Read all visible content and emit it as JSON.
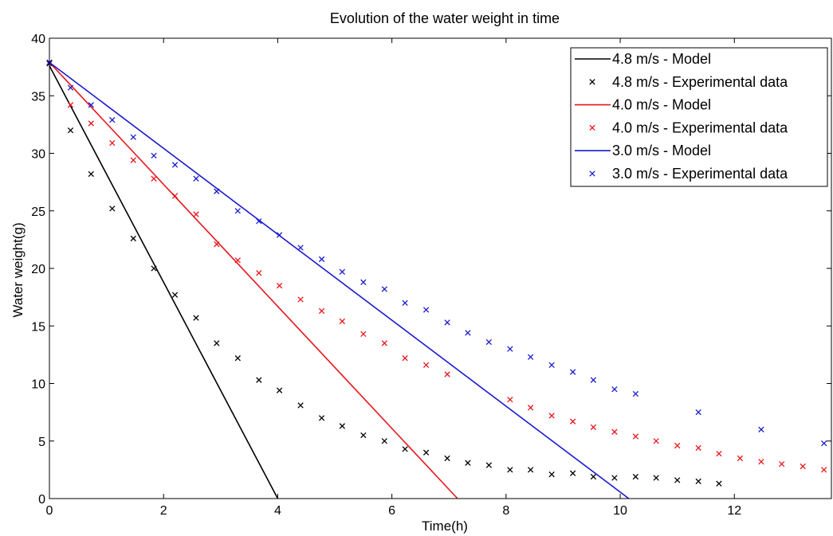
{
  "chart_data": {
    "type": "line",
    "title": "Evolution of the water weight in time",
    "xlabel": "Time(h)",
    "ylabel": "Water weight(g)",
    "xlim": [
      0,
      13.7
    ],
    "ylim": [
      0,
      40
    ],
    "xticks": [
      0,
      2,
      4,
      6,
      8,
      10,
      12
    ],
    "yticks": [
      0,
      5,
      10,
      15,
      20,
      25,
      30,
      35,
      40
    ],
    "grid": false,
    "legend_position": "top-right",
    "series": [
      {
        "name": "4.8 m/s - Model",
        "kind": "line",
        "color": "#000000",
        "x": [
          0,
          4.0
        ],
        "y": [
          37.6,
          0
        ]
      },
      {
        "name": "4.8 m/s - Experimental data",
        "kind": "scatter",
        "color": "#000000",
        "x": [
          0,
          0.37,
          0.73,
          1.1,
          1.47,
          1.83,
          2.2,
          2.57,
          2.93,
          3.3,
          3.67,
          4.03,
          4.4,
          4.77,
          5.13,
          5.5,
          5.87,
          6.23,
          6.6,
          6.97,
          7.33,
          7.7,
          8.07,
          8.43,
          8.8,
          9.17,
          9.53,
          9.9,
          10.27,
          10.63,
          11.0,
          11.37,
          11.73
        ],
        "y": [
          37.8,
          32.0,
          28.2,
          25.2,
          22.6,
          20.0,
          17.7,
          15.7,
          13.5,
          12.2,
          10.3,
          9.4,
          8.1,
          7.0,
          6.3,
          5.5,
          5.0,
          4.3,
          4.0,
          3.5,
          3.1,
          2.9,
          2.5,
          2.5,
          2.1,
          2.2,
          1.9,
          1.8,
          1.9,
          1.8,
          1.6,
          1.5,
          1.3
        ]
      },
      {
        "name": "4.0 m/s - Model",
        "kind": "line",
        "color": "#e8161b",
        "x": [
          0,
          7.15
        ],
        "y": [
          37.9,
          0
        ]
      },
      {
        "name": "4.0 m/s - Experimental data",
        "kind": "scatter",
        "color": "#e8161b",
        "x": [
          0,
          0.37,
          0.73,
          1.1,
          1.47,
          1.83,
          2.2,
          2.57,
          2.93,
          3.3,
          3.67,
          4.03,
          4.4,
          4.77,
          5.13,
          5.5,
          5.87,
          6.23,
          6.6,
          6.97,
          8.07,
          8.43,
          8.8,
          9.17,
          9.53,
          9.9,
          10.27,
          10.63,
          11.0,
          11.37,
          11.73,
          12.1,
          12.47,
          12.83,
          13.2,
          13.57
        ],
        "y": [
          37.9,
          34.2,
          32.6,
          30.9,
          29.4,
          27.8,
          26.3,
          24.7,
          22.1,
          20.7,
          19.6,
          18.5,
          17.3,
          16.3,
          15.4,
          14.3,
          13.5,
          12.2,
          11.6,
          10.8,
          8.6,
          7.9,
          7.2,
          6.7,
          6.2,
          5.8,
          5.4,
          5.0,
          4.6,
          4.4,
          3.9,
          3.5,
          3.2,
          3.0,
          2.8,
          2.5
        ]
      },
      {
        "name": "3.0 m/s - Model",
        "kind": "line",
        "color": "#1a1ad0",
        "x": [
          0,
          10.15
        ],
        "y": [
          37.9,
          0
        ]
      },
      {
        "name": "3.0 m/s - Experimental data",
        "kind": "scatter",
        "color": "#1a1ad0",
        "x": [
          0,
          0.37,
          0.73,
          1.1,
          1.47,
          1.83,
          2.2,
          2.57,
          2.93,
          3.3,
          3.67,
          4.03,
          4.4,
          4.77,
          5.13,
          5.5,
          5.87,
          6.23,
          6.6,
          6.97,
          7.33,
          7.7,
          8.07,
          8.43,
          8.8,
          9.17,
          9.53,
          9.9,
          10.27,
          11.37,
          12.47,
          13.57
        ],
        "y": [
          37.9,
          35.7,
          34.2,
          32.9,
          31.4,
          29.8,
          29.0,
          27.8,
          26.7,
          25.0,
          24.1,
          22.9,
          21.8,
          20.8,
          19.7,
          18.8,
          18.2,
          17.0,
          16.4,
          15.3,
          14.4,
          13.6,
          13.0,
          12.3,
          11.6,
          11.0,
          10.3,
          9.5,
          9.1,
          7.5,
          6.0,
          4.8
        ]
      }
    ]
  }
}
